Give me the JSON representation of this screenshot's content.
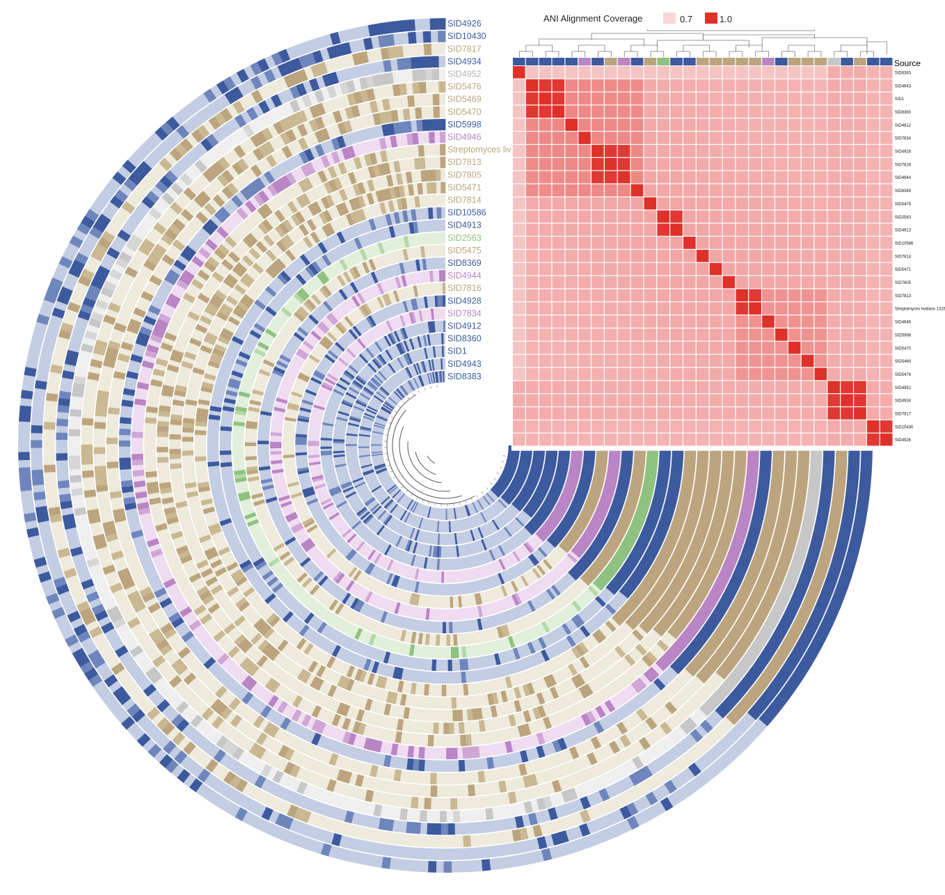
{
  "colors": {
    "source_blue": "#3d5a9e",
    "source_tan": "#bca57e",
    "source_purple": "#b985c4",
    "source_green": "#8fc280",
    "source_gray": "#c7c7c7",
    "cov_low": "#f9d7d8",
    "cov_high": "#e0302a"
  },
  "legend": {
    "title": "ANI Alignment Coverage",
    "low_label": "0.7",
    "high_label": "1.0",
    "low_value": 0.7,
    "high_value": 1.0
  },
  "source_label": "Source",
  "rings": [
    {
      "label": "SID4926",
      "source": "blue"
    },
    {
      "label": "SID10430",
      "source": "blue"
    },
    {
      "label": "SID7817",
      "source": "tan"
    },
    {
      "label": "SID4934",
      "source": "blue"
    },
    {
      "label": "SID4952",
      "source": "gray"
    },
    {
      "label": "SID5476",
      "source": "tan"
    },
    {
      "label": "SID5469",
      "source": "tan"
    },
    {
      "label": "SID5470",
      "source": "tan"
    },
    {
      "label": "SID5998",
      "source": "blue"
    },
    {
      "label": "SID4946",
      "source": "purple"
    },
    {
      "label": "Streptomyces livic",
      "source": "tan"
    },
    {
      "label": "SID7813",
      "source": "tan"
    },
    {
      "label": "SID7805",
      "source": "tan"
    },
    {
      "label": "SID5471",
      "source": "tan"
    },
    {
      "label": "SID7814",
      "source": "tan"
    },
    {
      "label": "SID10586",
      "source": "blue"
    },
    {
      "label": "SID4913",
      "source": "blue"
    },
    {
      "label": "SID2563",
      "source": "green"
    },
    {
      "label": "SID5475",
      "source": "tan"
    },
    {
      "label": "SID8369",
      "source": "blue"
    },
    {
      "label": "SID4944",
      "source": "purple"
    },
    {
      "label": "SID7816",
      "source": "tan"
    },
    {
      "label": "SID4928",
      "source": "blue"
    },
    {
      "label": "SID7834",
      "source": "purple"
    },
    {
      "label": "SID4912",
      "source": "blue"
    },
    {
      "label": "SID8360",
      "source": "blue"
    },
    {
      "label": "SID1",
      "source": "blue"
    },
    {
      "label": "SID4943",
      "source": "blue"
    },
    {
      "label": "SID8383",
      "source": "blue"
    }
  ],
  "matrix_rows": [
    "SID8383",
    "SID4943",
    "SID1",
    "SID8360",
    "SID4912",
    "SID7834",
    "SID4928",
    "SID7816",
    "SID4944",
    "SID8369",
    "SID5475",
    "SID2563",
    "SID4913",
    "SID10586",
    "SID7814",
    "SID5471",
    "SID7805",
    "SID7813",
    "Streptomyces lividans 1326",
    "SID4946",
    "SID5998",
    "SID5470",
    "SID5469",
    "SID5476",
    "SID4952",
    "SID4934",
    "SID7817",
    "SID10430",
    "SID4926"
  ],
  "matrix_sources": [
    "blue",
    "blue",
    "blue",
    "blue",
    "blue",
    "purple",
    "blue",
    "tan",
    "purple",
    "blue",
    "tan",
    "green",
    "blue",
    "blue",
    "tan",
    "tan",
    "tan",
    "tan",
    "tan",
    "purple",
    "blue",
    "tan",
    "tan",
    "tan",
    "gray",
    "blue",
    "tan",
    "blue",
    "blue"
  ],
  "clusters": [
    [
      0
    ],
    [
      1,
      2,
      3
    ],
    [
      4
    ],
    [
      5
    ],
    [
      6,
      7,
      8
    ],
    [
      9
    ],
    [
      10
    ],
    [
      11,
      12
    ],
    [
      13
    ],
    [
      14
    ],
    [
      15
    ],
    [
      16
    ],
    [
      17,
      18
    ],
    [
      19
    ],
    [
      20
    ],
    [
      21
    ],
    [
      22
    ],
    [
      23
    ],
    [
      24,
      25,
      26
    ],
    [
      27,
      28
    ]
  ]
}
